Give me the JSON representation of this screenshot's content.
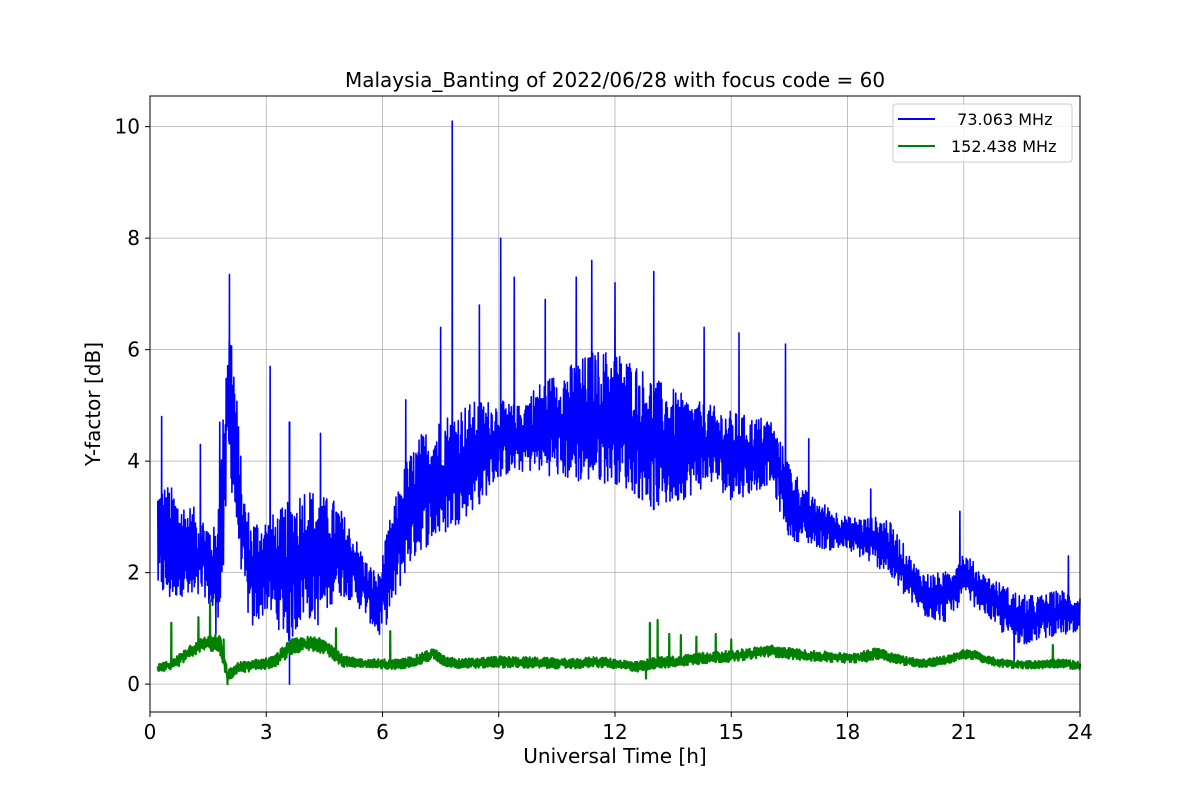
{
  "chart_data": {
    "type": "line",
    "title": "Malaysia_Banting of 2022/06/28 with focus code = 60",
    "xlabel": "Universal Time [h]",
    "ylabel": "Y-factor [dB]",
    "xlim": [
      0,
      24
    ],
    "ylim": [
      -0.5,
      10.55
    ],
    "xticks": [
      0,
      3,
      6,
      9,
      12,
      15,
      18,
      21,
      24
    ],
    "yticks": [
      0,
      2,
      4,
      6,
      8,
      10
    ],
    "grid": true,
    "legend_position": "top-right",
    "series": [
      {
        "name": "  73.063 MHz",
        "color": "#0000ff",
        "envelope": {
          "x": [
            0.2,
            0.5,
            0.8,
            1.1,
            1.4,
            1.7,
            1.9,
            2.0,
            2.1,
            2.2,
            2.4,
            2.6,
            3.0,
            3.3,
            3.6,
            4.0,
            4.4,
            4.8,
            5.2,
            5.6,
            5.9,
            6.2,
            6.6,
            7.0,
            7.5,
            8.0,
            8.5,
            9.0,
            9.5,
            10.0,
            10.5,
            11.0,
            11.5,
            12.0,
            12.5,
            13.0,
            13.5,
            14.0,
            14.5,
            15.0,
            15.5,
            16.0,
            16.5,
            17.0,
            17.5,
            18.0,
            18.5,
            19.0,
            19.3,
            19.7,
            20.0,
            20.5,
            21.0,
            21.5,
            22.0,
            22.5,
            23.0,
            23.5,
            24.0
          ],
          "low": [
            1.6,
            1.4,
            1.6,
            1.3,
            1.6,
            1.0,
            1.7,
            3.8,
            3.5,
            2.8,
            1.8,
            0.9,
            1.3,
            1.0,
            0.7,
            1.2,
            1.0,
            1.6,
            1.5,
            1.2,
            0.8,
            1.2,
            2.0,
            2.4,
            2.6,
            2.9,
            3.2,
            3.7,
            3.8,
            3.8,
            3.7,
            3.6,
            3.6,
            3.6,
            3.4,
            3.1,
            3.2,
            3.4,
            3.6,
            3.3,
            3.4,
            3.6,
            2.6,
            2.5,
            2.4,
            2.4,
            2.2,
            2.0,
            1.7,
            1.4,
            1.2,
            1.1,
            1.5,
            1.3,
            0.9,
            0.7,
            0.8,
            0.9,
            0.8
          ],
          "high": [
            3.6,
            3.6,
            3.3,
            3.2,
            3.0,
            2.8,
            5.0,
            6.6,
            6.4,
            5.6,
            3.5,
            3.0,
            3.0,
            3.1,
            3.3,
            3.6,
            3.4,
            3.3,
            2.8,
            2.2,
            2.0,
            3.0,
            4.0,
            4.5,
            4.8,
            5.0,
            5.1,
            5.1,
            5.0,
            5.4,
            5.6,
            5.8,
            6.0,
            6.0,
            5.8,
            5.5,
            5.3,
            5.1,
            5.0,
            4.9,
            4.8,
            4.8,
            4.0,
            3.4,
            3.2,
            3.0,
            3.0,
            3.0,
            2.7,
            2.2,
            2.0,
            2.0,
            2.4,
            2.0,
            1.8,
            1.6,
            1.6,
            1.7,
            1.6
          ]
        },
        "peaks": [
          {
            "x": 0.3,
            "y": 4.8
          },
          {
            "x": 1.3,
            "y": 4.3
          },
          {
            "x": 1.8,
            "y": 4.7
          },
          {
            "x": 2.05,
            "y": 7.35
          },
          {
            "x": 3.1,
            "y": 5.7
          },
          {
            "x": 3.6,
            "y": 4.7
          },
          {
            "x": 4.4,
            "y": 4.5
          },
          {
            "x": 6.6,
            "y": 5.1
          },
          {
            "x": 7.5,
            "y": 6.4
          },
          {
            "x": 7.8,
            "y": 10.1
          },
          {
            "x": 8.5,
            "y": 6.8
          },
          {
            "x": 9.05,
            "y": 8.0
          },
          {
            "x": 9.4,
            "y": 7.3
          },
          {
            "x": 10.2,
            "y": 6.9
          },
          {
            "x": 11.0,
            "y": 7.3
          },
          {
            "x": 11.4,
            "y": 7.6
          },
          {
            "x": 12.0,
            "y": 7.2
          },
          {
            "x": 13.0,
            "y": 7.4
          },
          {
            "x": 14.3,
            "y": 6.4
          },
          {
            "x": 15.2,
            "y": 6.3
          },
          {
            "x": 16.4,
            "y": 6.1
          },
          {
            "x": 17.0,
            "y": 4.4
          },
          {
            "x": 18.6,
            "y": 3.5
          },
          {
            "x": 20.9,
            "y": 3.1
          },
          {
            "x": 23.7,
            "y": 2.3
          }
        ],
        "dips": [
          {
            "x": 3.6,
            "y": 0.0
          },
          {
            "x": 1.7,
            "y": 0.9
          },
          {
            "x": 22.3,
            "y": 0.4
          }
        ]
      },
      {
        "name": "152.438 MHz",
        "color": "#008000",
        "envelope": {
          "x": [
            0.2,
            0.6,
            1.0,
            1.4,
            1.8,
            2.0,
            2.3,
            2.8,
            3.2,
            3.6,
            4.0,
            4.5,
            5.0,
            5.5,
            6.0,
            6.5,
            7.0,
            7.3,
            7.6,
            8.0,
            9.0,
            10.0,
            11.0,
            11.5,
            12.0,
            12.6,
            13.0,
            13.5,
            14.0,
            14.5,
            15.0,
            15.5,
            16.0,
            16.5,
            17.0,
            17.5,
            18.0,
            18.5,
            18.8,
            19.2,
            19.6,
            20.0,
            20.5,
            21.0,
            21.3,
            21.6,
            22.0,
            22.5,
            23.0,
            23.5,
            24.0
          ],
          "low": [
            0.22,
            0.25,
            0.45,
            0.62,
            0.55,
            0.05,
            0.2,
            0.25,
            0.3,
            0.5,
            0.6,
            0.55,
            0.3,
            0.3,
            0.25,
            0.28,
            0.35,
            0.45,
            0.32,
            0.28,
            0.3,
            0.28,
            0.28,
            0.3,
            0.28,
            0.22,
            0.28,
            0.3,
            0.35,
            0.38,
            0.4,
            0.45,
            0.5,
            0.45,
            0.42,
            0.4,
            0.38,
            0.4,
            0.45,
            0.38,
            0.32,
            0.3,
            0.35,
            0.45,
            0.45,
            0.35,
            0.3,
            0.28,
            0.28,
            0.3,
            0.25
          ],
          "high": [
            0.35,
            0.45,
            0.7,
            0.85,
            0.9,
            0.25,
            0.4,
            0.45,
            0.5,
            0.8,
            0.85,
            0.85,
            0.5,
            0.45,
            0.45,
            0.45,
            0.55,
            0.65,
            0.5,
            0.45,
            0.5,
            0.48,
            0.45,
            0.5,
            0.45,
            0.4,
            0.48,
            0.5,
            0.55,
            0.58,
            0.6,
            0.65,
            0.7,
            0.65,
            0.6,
            0.58,
            0.55,
            0.6,
            0.68,
            0.55,
            0.48,
            0.45,
            0.5,
            0.62,
            0.6,
            0.5,
            0.45,
            0.42,
            0.42,
            0.45,
            0.4
          ]
        },
        "peaks": [
          {
            "x": 0.55,
            "y": 1.1
          },
          {
            "x": 1.25,
            "y": 1.2
          },
          {
            "x": 1.55,
            "y": 1.5
          },
          {
            "x": 1.9,
            "y": 0.8
          },
          {
            "x": 4.8,
            "y": 1.0
          },
          {
            "x": 6.2,
            "y": 0.95
          },
          {
            "x": 12.9,
            "y": 1.1
          },
          {
            "x": 13.1,
            "y": 1.15
          },
          {
            "x": 13.4,
            "y": 0.9
          },
          {
            "x": 13.7,
            "y": 0.88
          },
          {
            "x": 14.1,
            "y": 0.85
          },
          {
            "x": 14.6,
            "y": 0.9
          },
          {
            "x": 15.0,
            "y": 0.8
          },
          {
            "x": 23.3,
            "y": 0.7
          }
        ],
        "dips": [
          {
            "x": 2.0,
            "y": 0.0
          },
          {
            "x": 12.8,
            "y": 0.1
          }
        ]
      }
    ]
  }
}
